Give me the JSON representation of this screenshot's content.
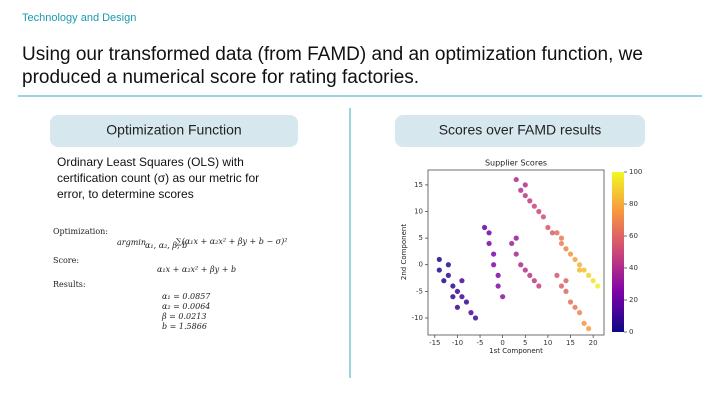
{
  "header": {
    "section": "Technology and Design",
    "title_lines": [
      "Using our transformed data (from FAMD) and an optimization function, we",
      "produced a numerical score for rating factories."
    ]
  },
  "left": {
    "heading": "Optimization Function",
    "text_lines": [
      "Ordinary Least Squares (OLS) with",
      "certification count (σ) as our metric for",
      "error, to determine scores"
    ],
    "optimization": {
      "label": "Optimization:",
      "operator": "argmin",
      "subscript": "α₁, α₂, β, b",
      "expression": "∑(α₁x + α₂x² + βy + b − σ)²"
    },
    "score": {
      "label": "Score:",
      "expression": "α₁x + α₂x² + βy + b"
    },
    "results": {
      "label": "Results:",
      "lines": [
        "α₁ = 0.0857",
        "α₂ = 0.0064",
        "β = 0.0213",
        "b = 1.5866"
      ]
    }
  },
  "right": {
    "heading": "Scores over FAMD results",
    "chart_data": {
      "type": "scatter",
      "title": "Supplier Scores",
      "xlabel": "1st Component",
      "ylabel": "2nd Component",
      "x": [
        -14,
        -12,
        -11,
        -10,
        -9,
        -8,
        -13,
        -11,
        -7,
        -6,
        -12,
        -9,
        -14,
        -10,
        -3,
        -3,
        -2,
        -2,
        -1,
        -1,
        -4,
        0,
        2,
        3,
        4,
        5,
        6,
        7,
        3,
        8,
        3,
        4,
        5,
        6,
        7,
        8,
        9,
        10,
        11,
        5,
        12,
        13,
        14,
        15,
        16,
        17,
        18,
        19,
        20,
        21,
        13,
        17,
        12,
        13,
        14,
        15,
        16,
        17,
        18,
        19,
        14
      ],
      "y": [
        -1,
        -2,
        -4,
        -5,
        -6,
        -7,
        -3,
        -6,
        -9,
        -10,
        0,
        -3,
        1,
        -8,
        6,
        4,
        2,
        0,
        -2,
        -4,
        7,
        -6,
        4,
        2,
        0,
        -1,
        -2,
        -3,
        5,
        -4,
        16,
        14,
        13,
        12,
        11,
        10,
        9,
        7,
        6,
        15,
        6,
        5,
        3,
        2,
        1,
        0,
        -1,
        -2,
        -3,
        -4,
        4,
        -1,
        -2,
        -4,
        -5,
        -7,
        -8,
        -9,
        -11,
        -12,
        -3
      ],
      "values": [
        5,
        8,
        6,
        10,
        12,
        9,
        4,
        7,
        14,
        11,
        6,
        13,
        3,
        9,
        22,
        25,
        24,
        27,
        26,
        28,
        20,
        30,
        35,
        38,
        40,
        42,
        44,
        45,
        33,
        47,
        40,
        42,
        44,
        46,
        48,
        50,
        52,
        55,
        57,
        41,
        62,
        66,
        70,
        74,
        78,
        82,
        86,
        90,
        94,
        98,
        68,
        84,
        55,
        58,
        60,
        63,
        66,
        70,
        74,
        77,
        59
      ],
      "xlim": [
        -16.5,
        22.4
      ],
      "ylim": [
        -13.2,
        17.8
      ],
      "clim": [
        0,
        100
      ],
      "xticks": [
        -15,
        -10,
        -5,
        0,
        5,
        10,
        15,
        20
      ],
      "yticks": [
        -10,
        -5,
        0,
        5,
        10,
        15
      ],
      "cticks": [
        0,
        20,
        40,
        60,
        80,
        100
      ],
      "colormap": "plasma"
    }
  }
}
